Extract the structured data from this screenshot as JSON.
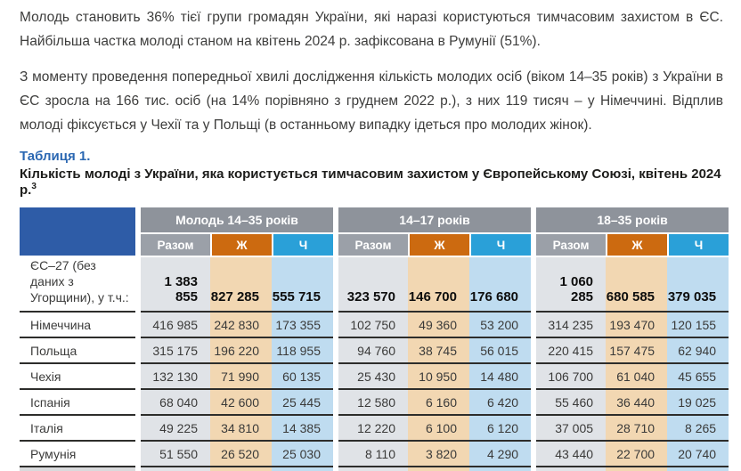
{
  "paragraphs": [
    "Молодь становить 36% тієї групи громадян України, які наразі користуються тимчасовим захистом в ЄС. Найбільша частка молоді станом на квітень 2024 р. зафіксована в Румунії (51%).",
    "З моменту проведення попередньої хвилі дослідження кількість молодих осіб (віком 14–35 років) з України в ЄС зросла на 166 тис. осіб (на 14% порівняно з груднем 2022 р.), з них 119 тисяч – у Німеччині. Відплив молоді фіксується у Чехії та у Польщі (в останньому випадку ідеться про молодих жінок)."
  ],
  "table": {
    "label": "Таблиця 1.",
    "caption": "Кількість молоді з України, яка користується тимчасовим захистом у Європейському Союзі, квітень 2024 р.",
    "caption_sup": "3",
    "groups": [
      "Молодь 14–35 років",
      "14–17 років",
      "18–35 років"
    ],
    "subheaders": [
      "Разом",
      "Ж",
      "Ч"
    ],
    "colors": {
      "corner_blue": "#2e5ca7",
      "group_header_gray": "#8e939b",
      "total_header_gray": "#9ba0a8",
      "female_orange": "#cc6a10",
      "male_blue": "#2aa0d8",
      "total_tint": "#e0e3e7",
      "female_tint": "#f2d7b2",
      "male_tint": "#bfdcf0",
      "row_border": "#2d2d2b",
      "accent_blue": "#2a67b2"
    },
    "rows": [
      {
        "label": "ЄС–27 (без даних з Угорщини), у т.ч.:",
        "total": true,
        "values": [
          "1 383 855",
          "827 285",
          "555 715",
          "323 570",
          "146 700",
          "176 680",
          "1 060 285",
          "680 585",
          "379 035"
        ]
      },
      {
        "label": "Німеччина",
        "values": [
          "416 985",
          "242 830",
          "173 355",
          "102 750",
          "49 360",
          "53 200",
          "314 235",
          "193 470",
          "120 155"
        ]
      },
      {
        "label": "Польща",
        "values": [
          "315 175",
          "196 220",
          "118 955",
          "94 760",
          "38 745",
          "56 015",
          "220 415",
          "157 475",
          "62 940"
        ]
      },
      {
        "label": "Чехія",
        "values": [
          "132 130",
          "71 990",
          "60 135",
          "25 430",
          "10 950",
          "14 480",
          "106 700",
          "61 040",
          "45 655"
        ]
      },
      {
        "label": "Іспанія",
        "values": [
          "68 040",
          "42 600",
          "25 445",
          "12 580",
          "6 160",
          "6 420",
          "55 460",
          "36 440",
          "19 025"
        ]
      },
      {
        "label": "Італія",
        "values": [
          "49 225",
          "34 810",
          "14 385",
          "12 220",
          "6 100",
          "6 120",
          "37 005",
          "28 710",
          "8 265"
        ]
      },
      {
        "label": "Румунія",
        "values": [
          "51 550",
          "26 520",
          "25 030",
          "8 110",
          "3 820",
          "4 290",
          "43 440",
          "22 700",
          "20 740"
        ]
      }
    ]
  }
}
